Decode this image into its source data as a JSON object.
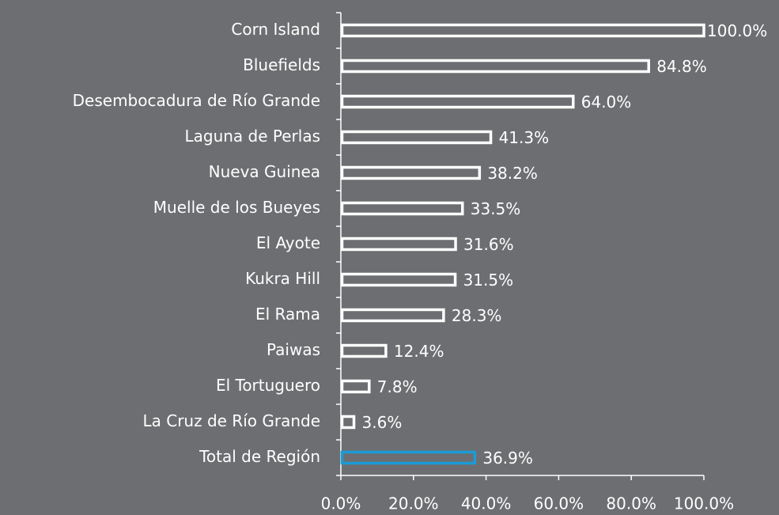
{
  "chart_data": {
    "type": "hbar",
    "categories": [
      "Corn Island",
      "Bluefields",
      "Desembocadura de Río Grande",
      "Laguna de Perlas",
      "Nueva Guinea",
      "Muelle de los Bueyes",
      "El Ayote",
      "Kukra Hill",
      "El Rama",
      "Paiwas",
      "El Tortuguero",
      "La Cruz de Río Grande",
      "Total de Región"
    ],
    "values": [
      100.0,
      84.8,
      64.0,
      41.3,
      38.2,
      33.5,
      31.6,
      31.5,
      28.3,
      12.4,
      7.8,
      3.6,
      36.9
    ],
    "value_labels": [
      "100.0%",
      "84.8%",
      "64.0%",
      "41.3%",
      "38.2%",
      "33.5%",
      "31.6%",
      "31.5%",
      "28.3%",
      "12.4%",
      "7.8%",
      "3.6%",
      "36.9%"
    ],
    "colors": [
      "#ffffff",
      "#ffffff",
      "#ffffff",
      "#ffffff",
      "#ffffff",
      "#ffffff",
      "#ffffff",
      "#ffffff",
      "#ffffff",
      "#ffffff",
      "#ffffff",
      "#ffffff",
      "#1b9bd7"
    ],
    "xlim": [
      0,
      100
    ],
    "xticks": [
      {
        "value": 0,
        "label": "0.0%"
      },
      {
        "value": 20,
        "label": "20.0%"
      },
      {
        "value": 40,
        "label": "40.0%"
      },
      {
        "value": 60,
        "label": "60.0%"
      },
      {
        "value": 80,
        "label": "80.0%"
      },
      {
        "value": 100,
        "label": "100.0%"
      }
    ]
  }
}
